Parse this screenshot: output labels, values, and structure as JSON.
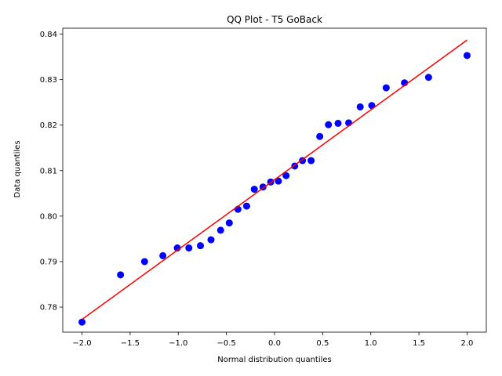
{
  "chart_data": {
    "type": "scatter",
    "title": "QQ Plot - T5 GoBack",
    "xlabel": "Normal distribution quantiles",
    "ylabel": "Data quantiles",
    "xlim": [
      -2.2,
      2.2
    ],
    "ylim": [
      0.7745,
      0.8413
    ],
    "xticks": [
      -2.0,
      -1.5,
      -1.0,
      -0.5,
      0.0,
      0.5,
      1.0,
      1.5,
      2.0
    ],
    "xtick_labels": [
      "−2.0",
      "−1.5",
      "−1.0",
      "−0.5",
      "0.0",
      "0.5",
      "1.0",
      "1.5",
      "2.0"
    ],
    "yticks": [
      0.78,
      0.79,
      0.8,
      0.81,
      0.82,
      0.83,
      0.84
    ],
    "ytick_labels": [
      "0.78",
      "0.79",
      "0.80",
      "0.81",
      "0.82",
      "0.83",
      "0.84"
    ],
    "grid": false,
    "points": {
      "color": "#0000ff",
      "x": [
        -2.0,
        -1.6,
        -1.35,
        -1.16,
        -1.01,
        -0.89,
        -0.77,
        -0.66,
        -0.56,
        -0.47,
        -0.38,
        -0.29,
        -0.21,
        -0.12,
        -0.04,
        0.04,
        0.12,
        0.21,
        0.29,
        0.38,
        0.47,
        0.56,
        0.66,
        0.77,
        0.89,
        1.01,
        1.16,
        1.35,
        1.6,
        2.0
      ],
      "y": [
        0.7767,
        0.7871,
        0.79,
        0.7913,
        0.793,
        0.793,
        0.7935,
        0.7948,
        0.7969,
        0.7985,
        0.8015,
        0.8022,
        0.8059,
        0.8064,
        0.8075,
        0.8077,
        0.8089,
        0.811,
        0.8122,
        0.8122,
        0.8175,
        0.8201,
        0.8204,
        0.8205,
        0.824,
        0.8243,
        0.8282,
        0.8293,
        0.8305,
        0.8353
      ]
    },
    "fit_line": {
      "color": "#ff0000",
      "x": [
        -2.0,
        2.0
      ],
      "y": [
        0.7773,
        0.8387
      ]
    }
  }
}
